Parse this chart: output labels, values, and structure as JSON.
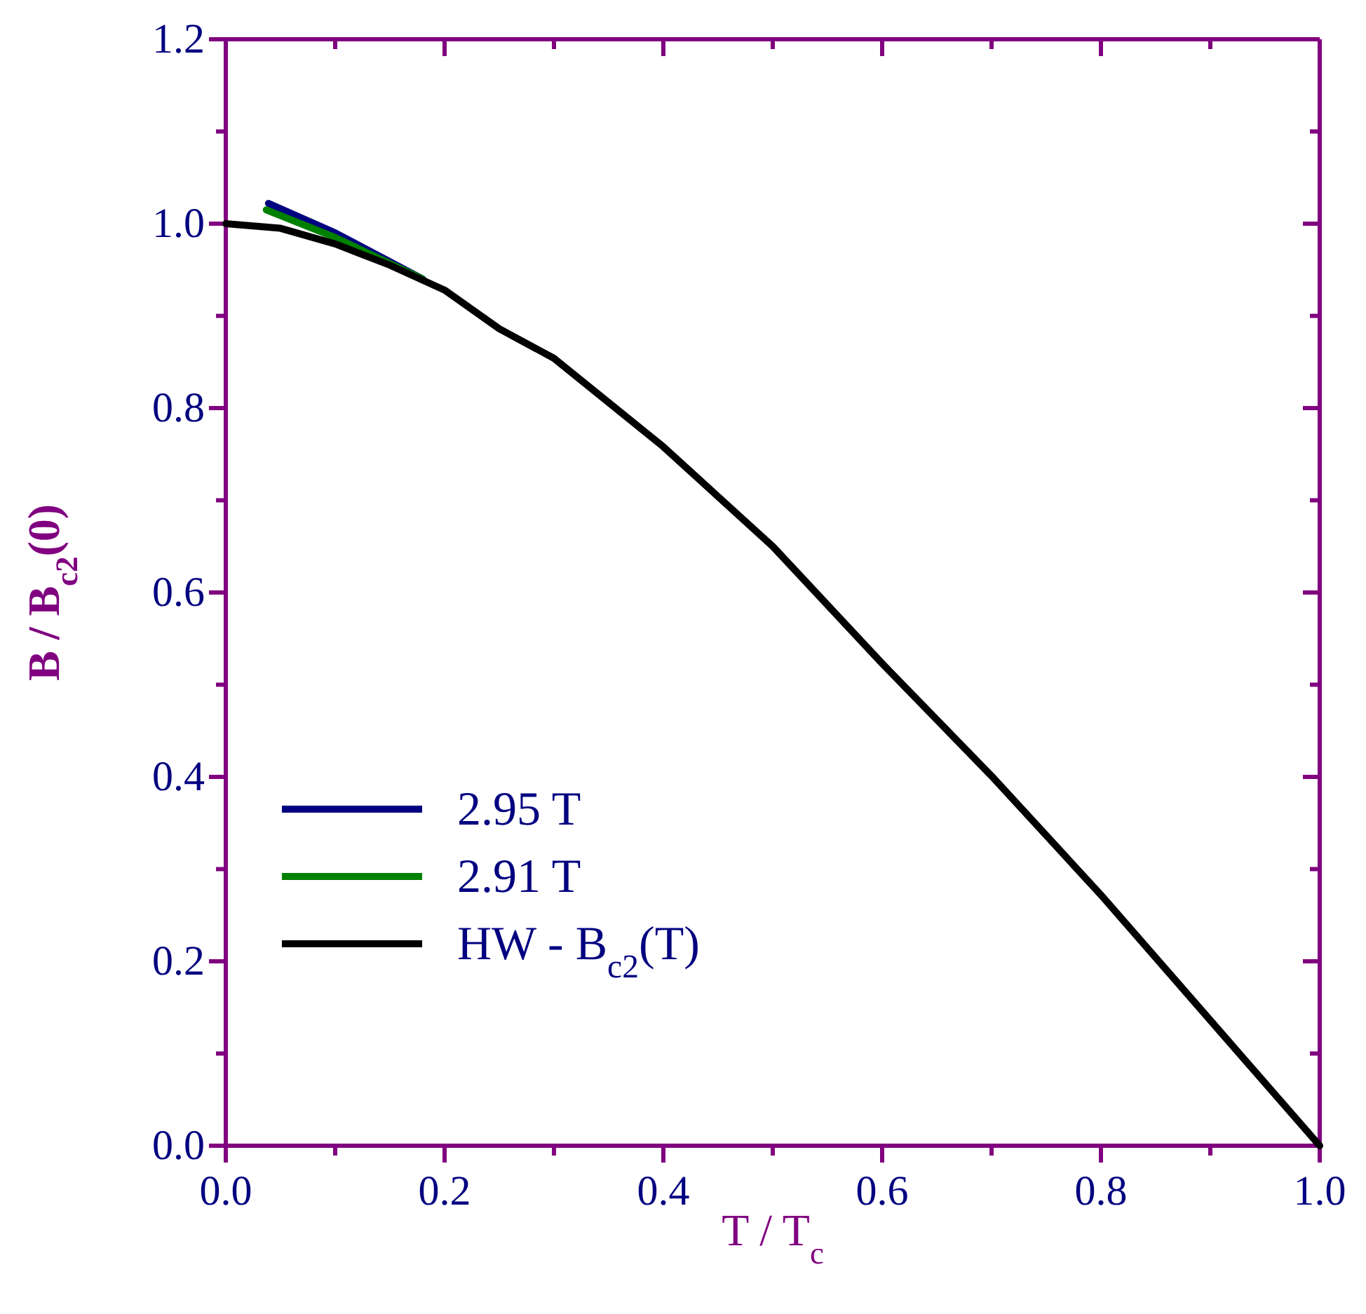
{
  "chart_data": {
    "type": "line",
    "xlabel": "T / T$_{c}$",
    "ylabel": "B / B$_{c2}$(0)",
    "xlim": [
      0,
      1
    ],
    "ylim": [
      0,
      1.2
    ],
    "xticks": [
      {
        "value": 0,
        "label": "0.0"
      },
      {
        "value": 0.1,
        "label": null
      },
      {
        "value": 0.2,
        "label": "0.2"
      },
      {
        "value": 0.3,
        "label": null
      },
      {
        "value": 0.4,
        "label": "0.4"
      },
      {
        "value": 0.5,
        "label": null
      },
      {
        "value": 0.6,
        "label": "0.6"
      },
      {
        "value": 0.7,
        "label": null
      },
      {
        "value": 0.8,
        "label": "0.8"
      },
      {
        "value": 0.9,
        "label": null
      },
      {
        "value": 1,
        "label": "1.0"
      }
    ],
    "yticks": [
      {
        "value": 0,
        "label": "0.0"
      },
      {
        "value": 0.1,
        "label": null
      },
      {
        "value": 0.2,
        "label": "0.2"
      },
      {
        "value": 0.3,
        "label": null
      },
      {
        "value": 0.4,
        "label": "0.4"
      },
      {
        "value": 0.5,
        "label": null
      },
      {
        "value": 0.6,
        "label": "0.6"
      },
      {
        "value": 0.7,
        "label": null
      },
      {
        "value": 0.8,
        "label": "0.8"
      },
      {
        "value": 0.9,
        "label": null
      },
      {
        "value": 1,
        "label": "1.0"
      },
      {
        "value": 1.1,
        "label": null
      },
      {
        "value": 1.2,
        "label": "1.2"
      }
    ],
    "grid": false,
    "legend": "bottom left",
    "marker": "none",
    "line_style": "solid",
    "series": [
      {
        "name": "2.95 T",
        "color": "#000080",
        "x": [
          0.039,
          0.1,
          0.18
        ],
        "values": [
          1.022,
          0.99,
          0.94
        ]
      },
      {
        "name": "2.91 T",
        "color": "#008000",
        "x": [
          0.037,
          0.1,
          0.18
        ],
        "values": [
          1.015,
          0.985,
          0.94
        ]
      },
      {
        "name": "HW - B$_{c2}$(T)",
        "color": "#000000",
        "x": [
          0,
          0.05,
          0.1,
          0.15,
          0.2,
          0.25,
          0.3,
          0.4,
          0.5,
          0.6,
          0.7,
          0.8,
          0.9,
          1.0
        ],
        "values": [
          1.0,
          0.995,
          0.978,
          0.955,
          0.928,
          0.886,
          0.854,
          0.758,
          0.65,
          0.523,
          0.401,
          0.272,
          0.136,
          0
        ]
      }
    ]
  }
}
